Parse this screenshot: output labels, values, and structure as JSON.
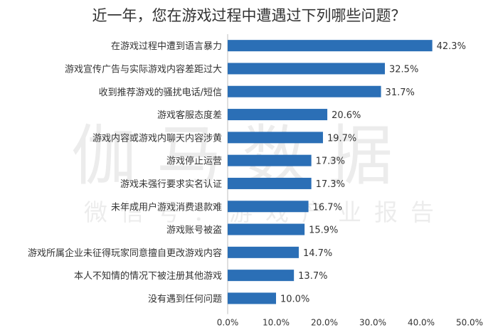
{
  "watermark": {
    "main": "伽马数据",
    "sub": "微信号：游戏产业报告"
  },
  "colors": {
    "bar": "#2b6fb6",
    "axis": "#bfbfbf",
    "label": "#333333"
  },
  "chart_data": {
    "type": "bar",
    "orientation": "horizontal",
    "title": "近一年，您在游戏过程中遭遇过下列哪些问题？",
    "categories": [
      "在游戏过程中遭到语言暴力",
      "游戏宣传广告与实际游戏内容差距过大",
      "收到推荐游戏的骚扰电话/短信",
      "游戏客服态度差",
      "游戏内容或游戏内聊天内容涉黄",
      "游戏停止运营",
      "游戏未强行要求实名认证",
      "未年成用户游戏消费退款难",
      "游戏账号被盗",
      "游戏所属企业未征得玩家同意擅自更改游戏内容",
      "本人不知情的情况下被注册其他游戏",
      "没有遇到任何问题"
    ],
    "values": [
      42.3,
      32.5,
      31.7,
      20.6,
      19.7,
      17.3,
      17.3,
      16.7,
      15.9,
      14.7,
      13.7,
      10.0
    ],
    "value_labels": [
      "42.3%",
      "32.5%",
      "31.7%",
      "20.6%",
      "19.7%",
      "17.3%",
      "17.3%",
      "16.7%",
      "15.9%",
      "14.7%",
      "13.7%",
      "10.0%"
    ],
    "xlim": [
      0,
      50
    ],
    "xticks": [
      0,
      10,
      20,
      30,
      40,
      50
    ],
    "xtick_labels": [
      "0.0%",
      "10.0%",
      "20.0%",
      "30.0%",
      "40.0%",
      "50.0%"
    ],
    "grid": false,
    "legend": "none"
  }
}
